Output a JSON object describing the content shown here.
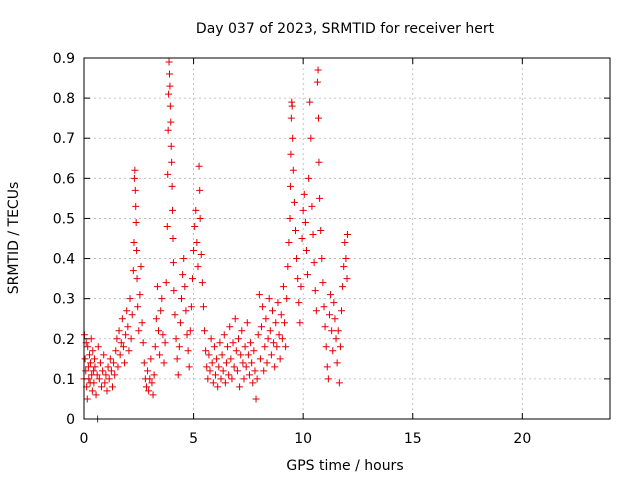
{
  "chart_data": {
    "type": "scatter",
    "title": "Day 037 of 2023, SRMTID for receiver hert",
    "xlabel": "GPS time / hours",
    "ylabel": "SRMTID / TECUs",
    "xlim": [
      0,
      24
    ],
    "ylim": [
      0,
      0.9
    ],
    "xticks": [
      0,
      5,
      10,
      15,
      20
    ],
    "xtick_labels": [
      "0",
      "5",
      "10",
      "15",
      "20"
    ],
    "yticks": [
      0,
      0.1,
      0.2,
      0.3,
      0.4,
      0.5,
      0.6,
      0.7,
      0.8,
      0.9
    ],
    "ytick_labels": [
      "0",
      "0.1",
      "0.2",
      "0.3",
      "0.4",
      "0.5",
      "0.6",
      "0.7",
      "0.8",
      "0.9"
    ],
    "grid": true,
    "marker": "plus",
    "color": "#e00000",
    "series": [
      {
        "name": "SRMTID",
        "points": [
          [
            0.0,
            0.1
          ],
          [
            0.02,
            0.21
          ],
          [
            0.05,
            0.15
          ],
          [
            0.08,
            0.12
          ],
          [
            0.1,
            0.19
          ],
          [
            0.12,
            0.08
          ],
          [
            0.15,
            0.05
          ],
          [
            0.17,
            0.18
          ],
          [
            0.2,
            0.13
          ],
          [
            0.22,
            0.1
          ],
          [
            0.25,
            0.16
          ],
          [
            0.28,
            0.09
          ],
          [
            0.3,
            0.14
          ],
          [
            0.33,
            0.2
          ],
          [
            0.35,
            0.11
          ],
          [
            0.38,
            0.07
          ],
          [
            0.4,
            0.17
          ],
          [
            0.43,
            0.12
          ],
          [
            0.45,
            0.09
          ],
          [
            0.48,
            0.15
          ],
          [
            0.5,
            0.13
          ],
          [
            0.55,
            0.06
          ],
          [
            0.6,
            0.11
          ],
          [
            0.62,
            0.0
          ],
          [
            0.65,
            0.18
          ],
          [
            0.7,
            0.1
          ],
          [
            0.75,
            0.14
          ],
          [
            0.8,
            0.08
          ],
          [
            0.85,
            0.12
          ],
          [
            0.9,
            0.16
          ],
          [
            0.95,
            0.09
          ],
          [
            1.0,
            0.11
          ],
          [
            1.05,
            0.07
          ],
          [
            1.1,
            0.13
          ],
          [
            1.15,
            0.1
          ],
          [
            1.2,
            0.15
          ],
          [
            1.25,
            0.12
          ],
          [
            1.3,
            0.08
          ],
          [
            1.35,
            0.14
          ],
          [
            1.4,
            0.11
          ],
          [
            1.45,
            0.17
          ],
          [
            1.5,
            0.2
          ],
          [
            1.55,
            0.13
          ],
          [
            1.6,
            0.22
          ],
          [
            1.65,
            0.16
          ],
          [
            1.7,
            0.19
          ],
          [
            1.75,
            0.25
          ],
          [
            1.8,
            0.18
          ],
          [
            1.85,
            0.14
          ],
          [
            1.9,
            0.21
          ],
          [
            1.95,
            0.27
          ],
          [
            2.0,
            0.23
          ],
          [
            2.05,
            0.17
          ],
          [
            2.1,
            0.3
          ],
          [
            2.15,
            0.2
          ],
          [
            2.2,
            0.26
          ],
          [
            2.25,
            0.37
          ],
          [
            2.28,
            0.44
          ],
          [
            2.3,
            0.6
          ],
          [
            2.32,
            0.62
          ],
          [
            2.34,
            0.57
          ],
          [
            2.36,
            0.53
          ],
          [
            2.38,
            0.49
          ],
          [
            2.4,
            0.42
          ],
          [
            2.42,
            0.35
          ],
          [
            2.45,
            0.28
          ],
          [
            2.5,
            0.22
          ],
          [
            2.55,
            0.31
          ],
          [
            2.6,
            0.38
          ],
          [
            2.65,
            0.24
          ],
          [
            2.7,
            0.19
          ],
          [
            2.75,
            0.14
          ],
          [
            2.8,
            0.1
          ],
          [
            2.85,
            0.08
          ],
          [
            2.9,
            0.12
          ],
          [
            2.95,
            0.07
          ],
          [
            3.0,
            0.1
          ],
          [
            3.05,
            0.15
          ],
          [
            3.1,
            0.09
          ],
          [
            3.15,
            0.06
          ],
          [
            3.2,
            0.11
          ],
          [
            3.25,
            0.18
          ],
          [
            3.3,
            0.25
          ],
          [
            3.35,
            0.33
          ],
          [
            3.4,
            0.22
          ],
          [
            3.45,
            0.16
          ],
          [
            3.5,
            0.27
          ],
          [
            3.55,
            0.3
          ],
          [
            3.6,
            0.21
          ],
          [
            3.65,
            0.14
          ],
          [
            3.7,
            0.19
          ],
          [
            3.75,
            0.34
          ],
          [
            3.8,
            0.48
          ],
          [
            3.82,
            0.61
          ],
          [
            3.84,
            0.72
          ],
          [
            3.86,
            0.81
          ],
          [
            3.88,
            0.89
          ],
          [
            3.9,
            0.86
          ],
          [
            3.92,
            0.83
          ],
          [
            3.94,
            0.78
          ],
          [
            3.96,
            0.74
          ],
          [
            3.98,
            0.68
          ],
          [
            4.0,
            0.64
          ],
          [
            4.02,
            0.58
          ],
          [
            4.04,
            0.52
          ],
          [
            4.06,
            0.45
          ],
          [
            4.08,
            0.39
          ],
          [
            4.1,
            0.32
          ],
          [
            4.15,
            0.26
          ],
          [
            4.2,
            0.2
          ],
          [
            4.25,
            0.15
          ],
          [
            4.3,
            0.11
          ],
          [
            4.35,
            0.18
          ],
          [
            4.4,
            0.24
          ],
          [
            4.45,
            0.3
          ],
          [
            4.5,
            0.36
          ],
          [
            4.55,
            0.4
          ],
          [
            4.6,
            0.33
          ],
          [
            4.65,
            0.27
          ],
          [
            4.7,
            0.21
          ],
          [
            4.75,
            0.17
          ],
          [
            4.8,
            0.13
          ],
          [
            4.85,
            0.22
          ],
          [
            4.9,
            0.28
          ],
          [
            4.95,
            0.35
          ],
          [
            5.0,
            0.42
          ],
          [
            5.05,
            0.48
          ],
          [
            5.1,
            0.52
          ],
          [
            5.15,
            0.44
          ],
          [
            5.2,
            0.38
          ],
          [
            5.25,
            0.63
          ],
          [
            5.28,
            0.57
          ],
          [
            5.3,
            0.5
          ],
          [
            5.35,
            0.41
          ],
          [
            5.4,
            0.34
          ],
          [
            5.45,
            0.28
          ],
          [
            5.5,
            0.22
          ],
          [
            5.55,
            0.17
          ],
          [
            5.6,
            0.13
          ],
          [
            5.65,
            0.1
          ],
          [
            5.7,
            0.16
          ],
          [
            5.75,
            0.12
          ],
          [
            5.8,
            0.2
          ],
          [
            5.85,
            0.14
          ],
          [
            5.9,
            0.09
          ],
          [
            5.95,
            0.18
          ],
          [
            6.0,
            0.11
          ],
          [
            6.05,
            0.15
          ],
          [
            6.1,
            0.08
          ],
          [
            6.15,
            0.13
          ],
          [
            6.2,
            0.19
          ],
          [
            6.25,
            0.1
          ],
          [
            6.3,
            0.16
          ],
          [
            6.35,
            0.12
          ],
          [
            6.4,
            0.21
          ],
          [
            6.45,
            0.09
          ],
          [
            6.5,
            0.14
          ],
          [
            6.55,
            0.18
          ],
          [
            6.6,
            0.11
          ],
          [
            6.65,
            0.23
          ],
          [
            6.7,
            0.15
          ],
          [
            6.75,
            0.1
          ],
          [
            6.8,
            0.19
          ],
          [
            6.85,
            0.13
          ],
          [
            6.9,
            0.25
          ],
          [
            6.95,
            0.17
          ],
          [
            7.0,
            0.12
          ],
          [
            7.05,
            0.2
          ],
          [
            7.1,
            0.08
          ],
          [
            7.15,
            0.16
          ],
          [
            7.2,
            0.22
          ],
          [
            7.25,
            0.14
          ],
          [
            7.3,
            0.1
          ],
          [
            7.35,
            0.18
          ],
          [
            7.4,
            0.13
          ],
          [
            7.45,
            0.24
          ],
          [
            7.5,
            0.16
          ],
          [
            7.55,
            0.11
          ],
          [
            7.6,
            0.19
          ],
          [
            7.65,
            0.14
          ],
          [
            7.7,
            0.09
          ],
          [
            7.75,
            0.17
          ],
          [
            7.8,
            0.12
          ],
          [
            7.85,
            0.05
          ],
          [
            7.9,
            0.1
          ],
          [
            7.95,
            0.21
          ],
          [
            8.0,
            0.31
          ],
          [
            8.05,
            0.15
          ],
          [
            8.1,
            0.23
          ],
          [
            8.15,
            0.28
          ],
          [
            8.2,
            0.12
          ],
          [
            8.25,
            0.18
          ],
          [
            8.3,
            0.25
          ],
          [
            8.35,
            0.14
          ],
          [
            8.4,
            0.2
          ],
          [
            8.45,
            0.3
          ],
          [
            8.5,
            0.22
          ],
          [
            8.55,
            0.16
          ],
          [
            8.6,
            0.27
          ],
          [
            8.65,
            0.19
          ],
          [
            8.7,
            0.13
          ],
          [
            8.75,
            0.24
          ],
          [
            8.8,
            0.18
          ],
          [
            8.85,
            0.29
          ],
          [
            8.9,
            0.21
          ],
          [
            8.95,
            0.15
          ],
          [
            9.0,
            0.26
          ],
          [
            9.05,
            0.2
          ],
          [
            9.1,
            0.33
          ],
          [
            9.15,
            0.24
          ],
          [
            9.2,
            0.18
          ],
          [
            9.25,
            0.3
          ],
          [
            9.3,
            0.38
          ],
          [
            9.35,
            0.44
          ],
          [
            9.4,
            0.5
          ],
          [
            9.42,
            0.58
          ],
          [
            9.44,
            0.66
          ],
          [
            9.46,
            0.75
          ],
          [
            9.48,
            0.79
          ],
          [
            9.5,
            0.78
          ],
          [
            9.52,
            0.7
          ],
          [
            9.55,
            0.62
          ],
          [
            9.6,
            0.54
          ],
          [
            9.65,
            0.47
          ],
          [
            9.7,
            0.4
          ],
          [
            9.75,
            0.35
          ],
          [
            9.8,
            0.29
          ],
          [
            9.85,
            0.24
          ],
          [
            9.9,
            0.33
          ],
          [
            9.95,
            0.45
          ],
          [
            10.0,
            0.52
          ],
          [
            10.05,
            0.56
          ],
          [
            10.1,
            0.49
          ],
          [
            10.15,
            0.42
          ],
          [
            10.2,
            0.36
          ],
          [
            10.25,
            0.6
          ],
          [
            10.3,
            0.79
          ],
          [
            10.35,
            0.7
          ],
          [
            10.4,
            0.53
          ],
          [
            10.45,
            0.46
          ],
          [
            10.5,
            0.39
          ],
          [
            10.55,
            0.32
          ],
          [
            10.6,
            0.27
          ],
          [
            10.65,
            0.84
          ],
          [
            10.68,
            0.87
          ],
          [
            10.7,
            0.75
          ],
          [
            10.72,
            0.64
          ],
          [
            10.75,
            0.55
          ],
          [
            10.8,
            0.47
          ],
          [
            10.85,
            0.4
          ],
          [
            10.9,
            0.34
          ],
          [
            10.95,
            0.28
          ],
          [
            11.0,
            0.23
          ],
          [
            11.05,
            0.18
          ],
          [
            11.1,
            0.13
          ],
          [
            11.15,
            0.1
          ],
          [
            11.2,
            0.26
          ],
          [
            11.25,
            0.31
          ],
          [
            11.3,
            0.22
          ],
          [
            11.35,
            0.17
          ],
          [
            11.4,
            0.29
          ],
          [
            11.45,
            0.25
          ],
          [
            11.5,
            0.2
          ],
          [
            11.55,
            0.14
          ],
          [
            11.6,
            0.22
          ],
          [
            11.65,
            0.09
          ],
          [
            11.7,
            0.18
          ],
          [
            11.75,
            0.27
          ],
          [
            11.8,
            0.33
          ],
          [
            11.85,
            0.38
          ],
          [
            11.9,
            0.44
          ],
          [
            11.95,
            0.4
          ],
          [
            12.0,
            0.35
          ],
          [
            12.02,
            0.46
          ]
        ]
      }
    ]
  }
}
